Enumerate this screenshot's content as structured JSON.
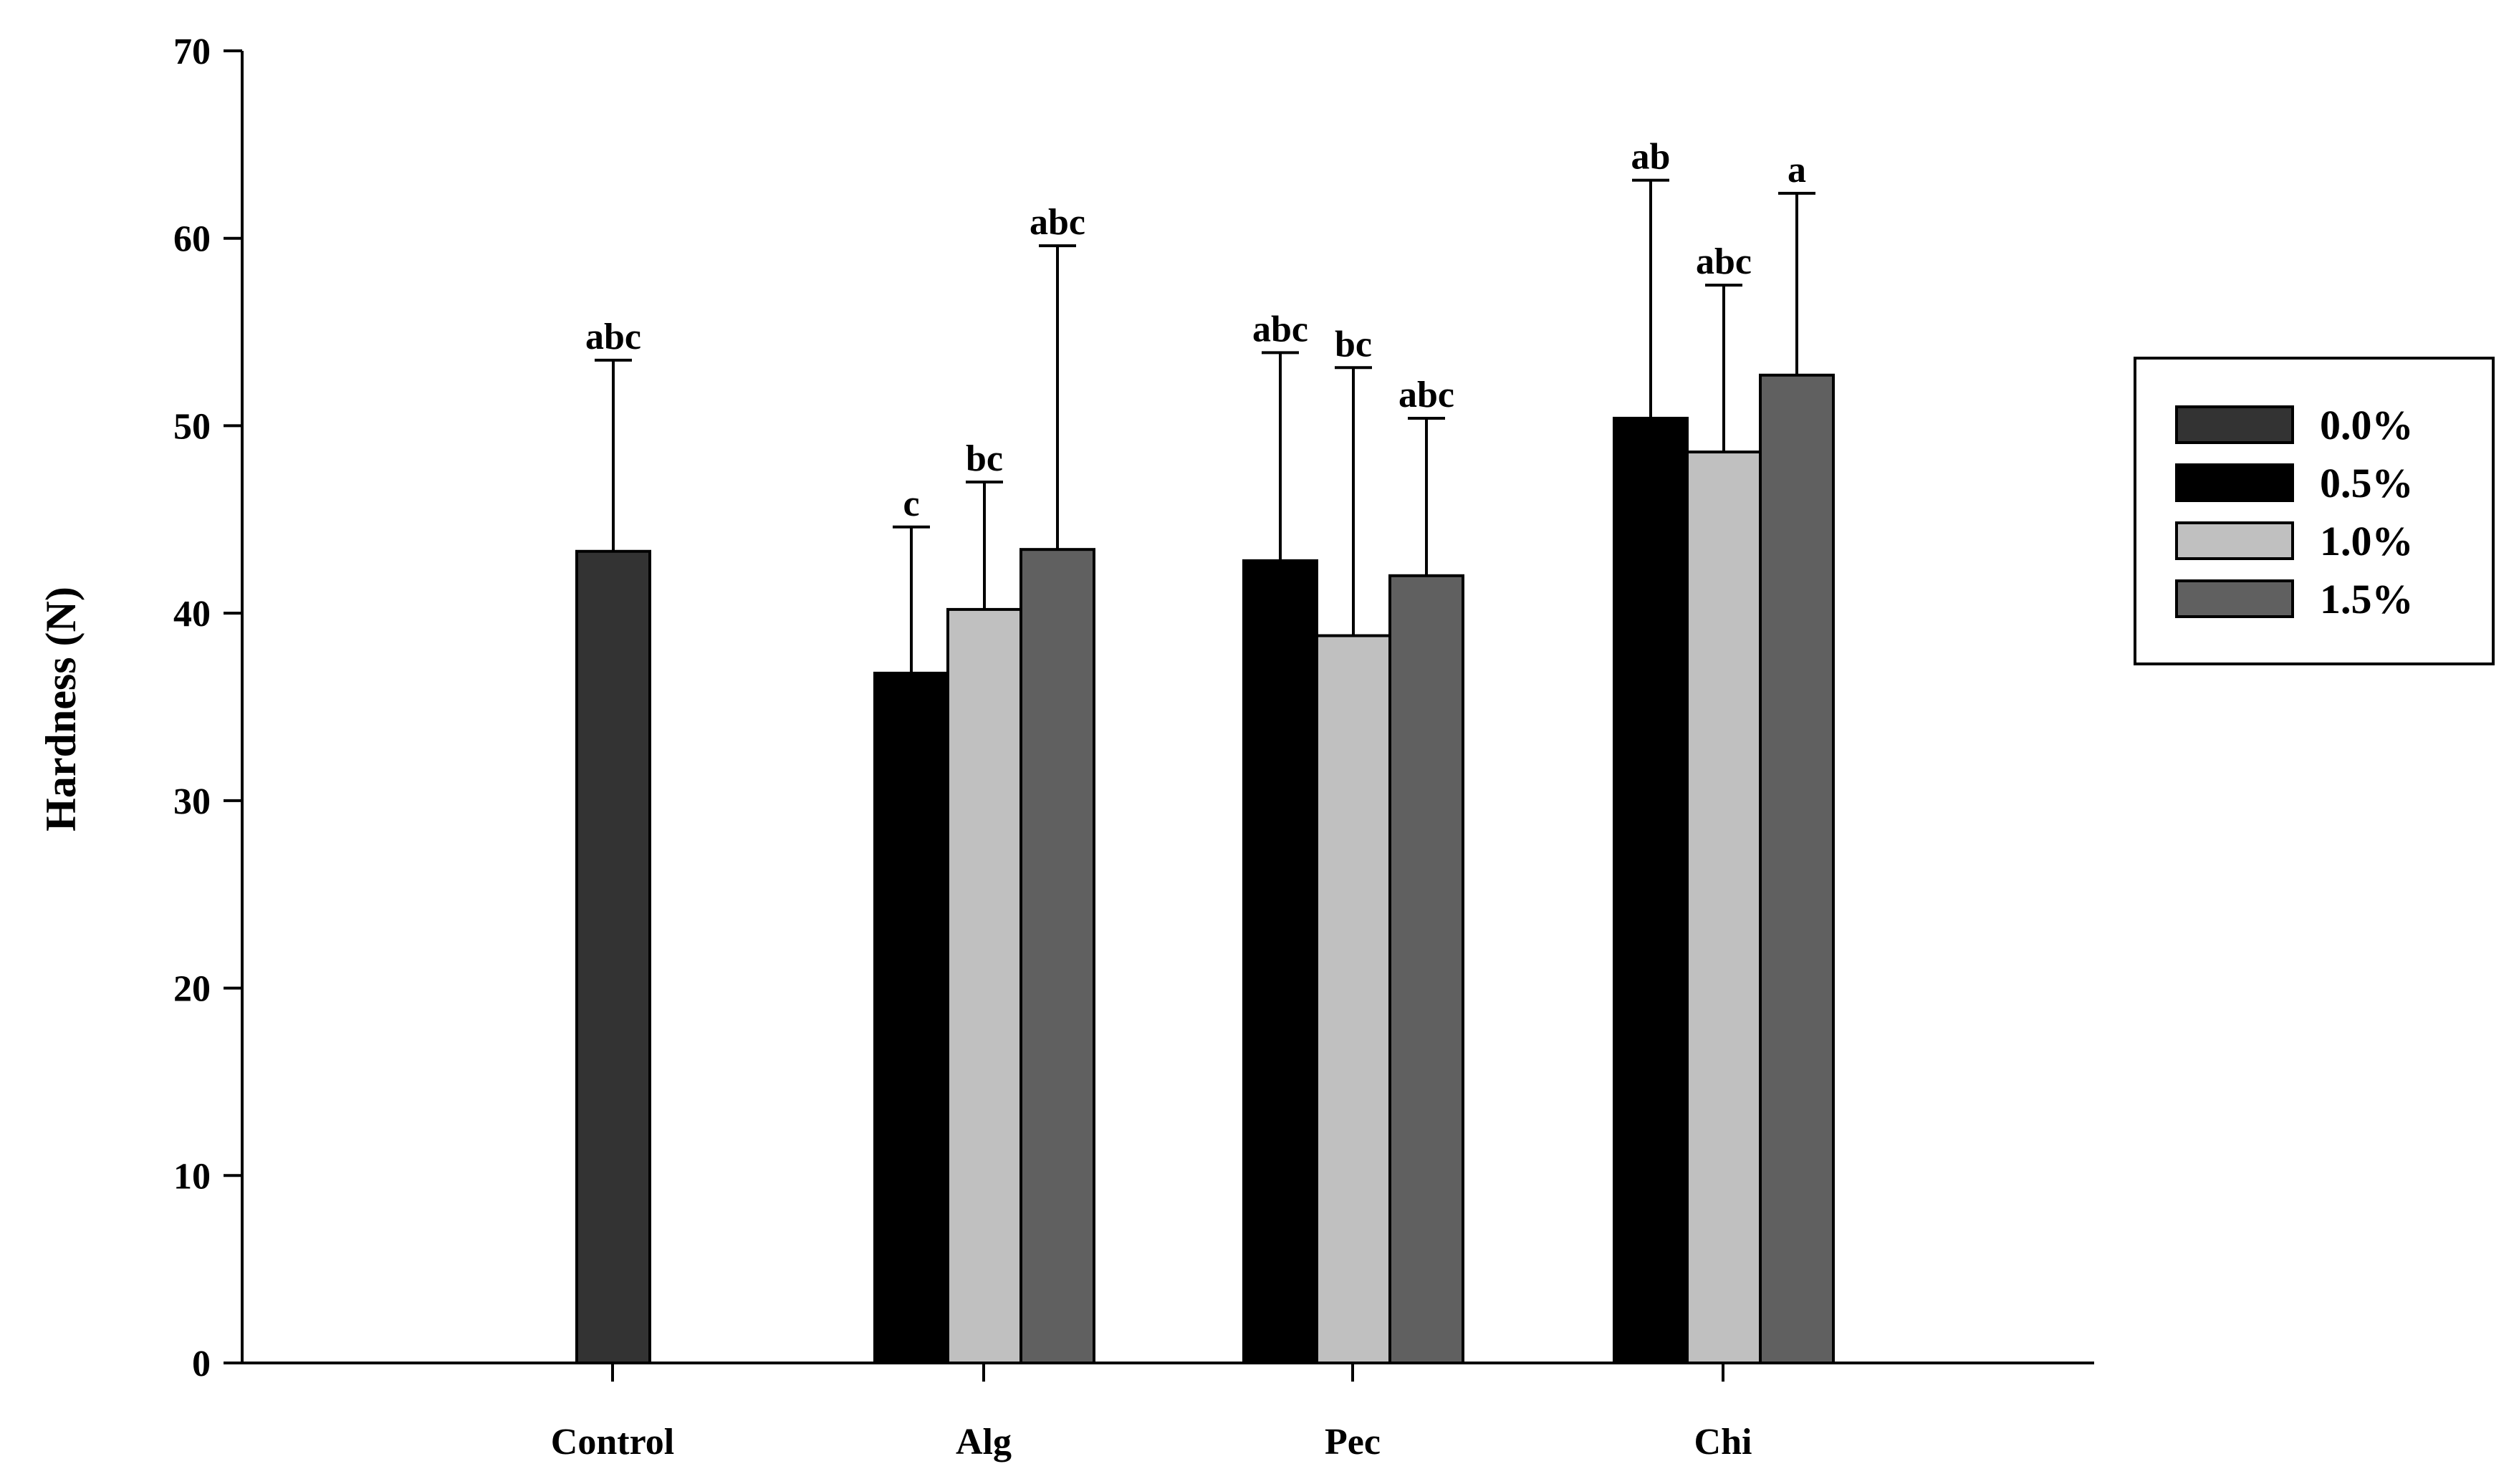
{
  "chart_data": {
    "type": "bar",
    "title": "",
    "xlabel": "",
    "ylabel": "Hardness (N)",
    "ylim": [
      0,
      70
    ],
    "yticks": [
      0,
      10,
      20,
      30,
      40,
      50,
      60,
      70
    ],
    "categories": [
      "Control",
      "Alg",
      "Pec",
      "Chi"
    ],
    "legend_position": "right",
    "series": [
      {
        "name": "0.0%",
        "color": "#333333",
        "values": [
          43.3,
          null,
          null,
          null
        ],
        "errors": [
          10.2,
          null,
          null,
          null
        ],
        "labels": [
          "abc",
          null,
          null,
          null
        ]
      },
      {
        "name": "0.5%",
        "color": "#000000",
        "values": [
          null,
          36.8,
          42.8,
          50.4
        ],
        "errors": [
          null,
          7.8,
          11.1,
          12.7
        ],
        "labels": [
          null,
          "c",
          "abc",
          "ab"
        ]
      },
      {
        "name": "1.0%",
        "color": "#c0c0c0",
        "values": [
          null,
          40.2,
          38.8,
          48.6
        ],
        "errors": [
          null,
          6.8,
          14.3,
          8.9
        ],
        "labels": [
          null,
          "bc",
          "bc",
          "abc"
        ]
      },
      {
        "name": "1.5%",
        "color": "#606060",
        "values": [
          null,
          43.4,
          42.0,
          52.7
        ],
        "errors": [
          null,
          16.2,
          8.4,
          9.7
        ],
        "labels": [
          null,
          "abc",
          "abc",
          "a"
        ]
      }
    ]
  }
}
